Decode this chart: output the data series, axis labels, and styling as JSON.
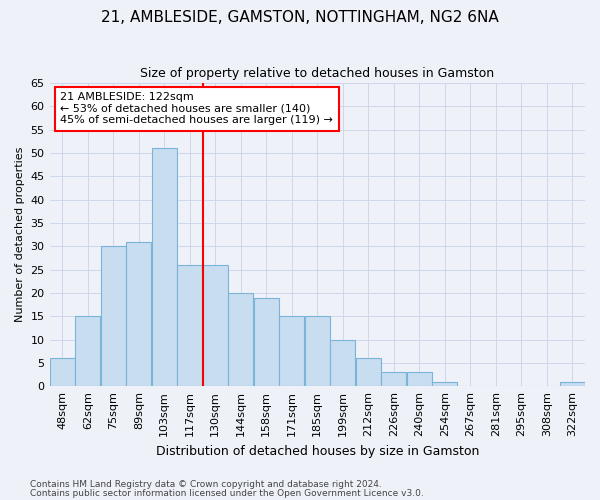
{
  "title1": "21, AMBLESIDE, GAMSTON, NOTTINGHAM, NG2 6NA",
  "title2": "Size of property relative to detached houses in Gamston",
  "xlabel": "Distribution of detached houses by size in Gamston",
  "ylabel": "Number of detached properties",
  "categories": [
    "48sqm",
    "62sqm",
    "75sqm",
    "89sqm",
    "103sqm",
    "117sqm",
    "130sqm",
    "144sqm",
    "158sqm",
    "171sqm",
    "185sqm",
    "199sqm",
    "212sqm",
    "226sqm",
    "240sqm",
    "254sqm",
    "267sqm",
    "281sqm",
    "295sqm",
    "308sqm",
    "322sqm"
  ],
  "values": [
    6,
    15,
    30,
    31,
    51,
    26,
    26,
    20,
    19,
    15,
    15,
    10,
    6,
    3,
    3,
    1,
    0,
    0,
    0,
    0,
    1
  ],
  "bar_color": "#c8ddf0",
  "bar_edge_color": "#7ab4d8",
  "vline_x": 5.5,
  "vline_color": "red",
  "annotation_text": "21 AMBLESIDE: 122sqm\n← 53% of detached houses are smaller (140)\n45% of semi-detached houses are larger (119) →",
  "annotation_box_color": "white",
  "annotation_box_edge": "red",
  "ylim": [
    0,
    65
  ],
  "yticks": [
    0,
    5,
    10,
    15,
    20,
    25,
    30,
    35,
    40,
    45,
    50,
    55,
    60,
    65
  ],
  "grid_color": "#c8d4e8",
  "footer1": "Contains HM Land Registry data © Crown copyright and database right 2024.",
  "footer2": "Contains public sector information licensed under the Open Government Licence v3.0.",
  "bg_color": "#eef2f8"
}
